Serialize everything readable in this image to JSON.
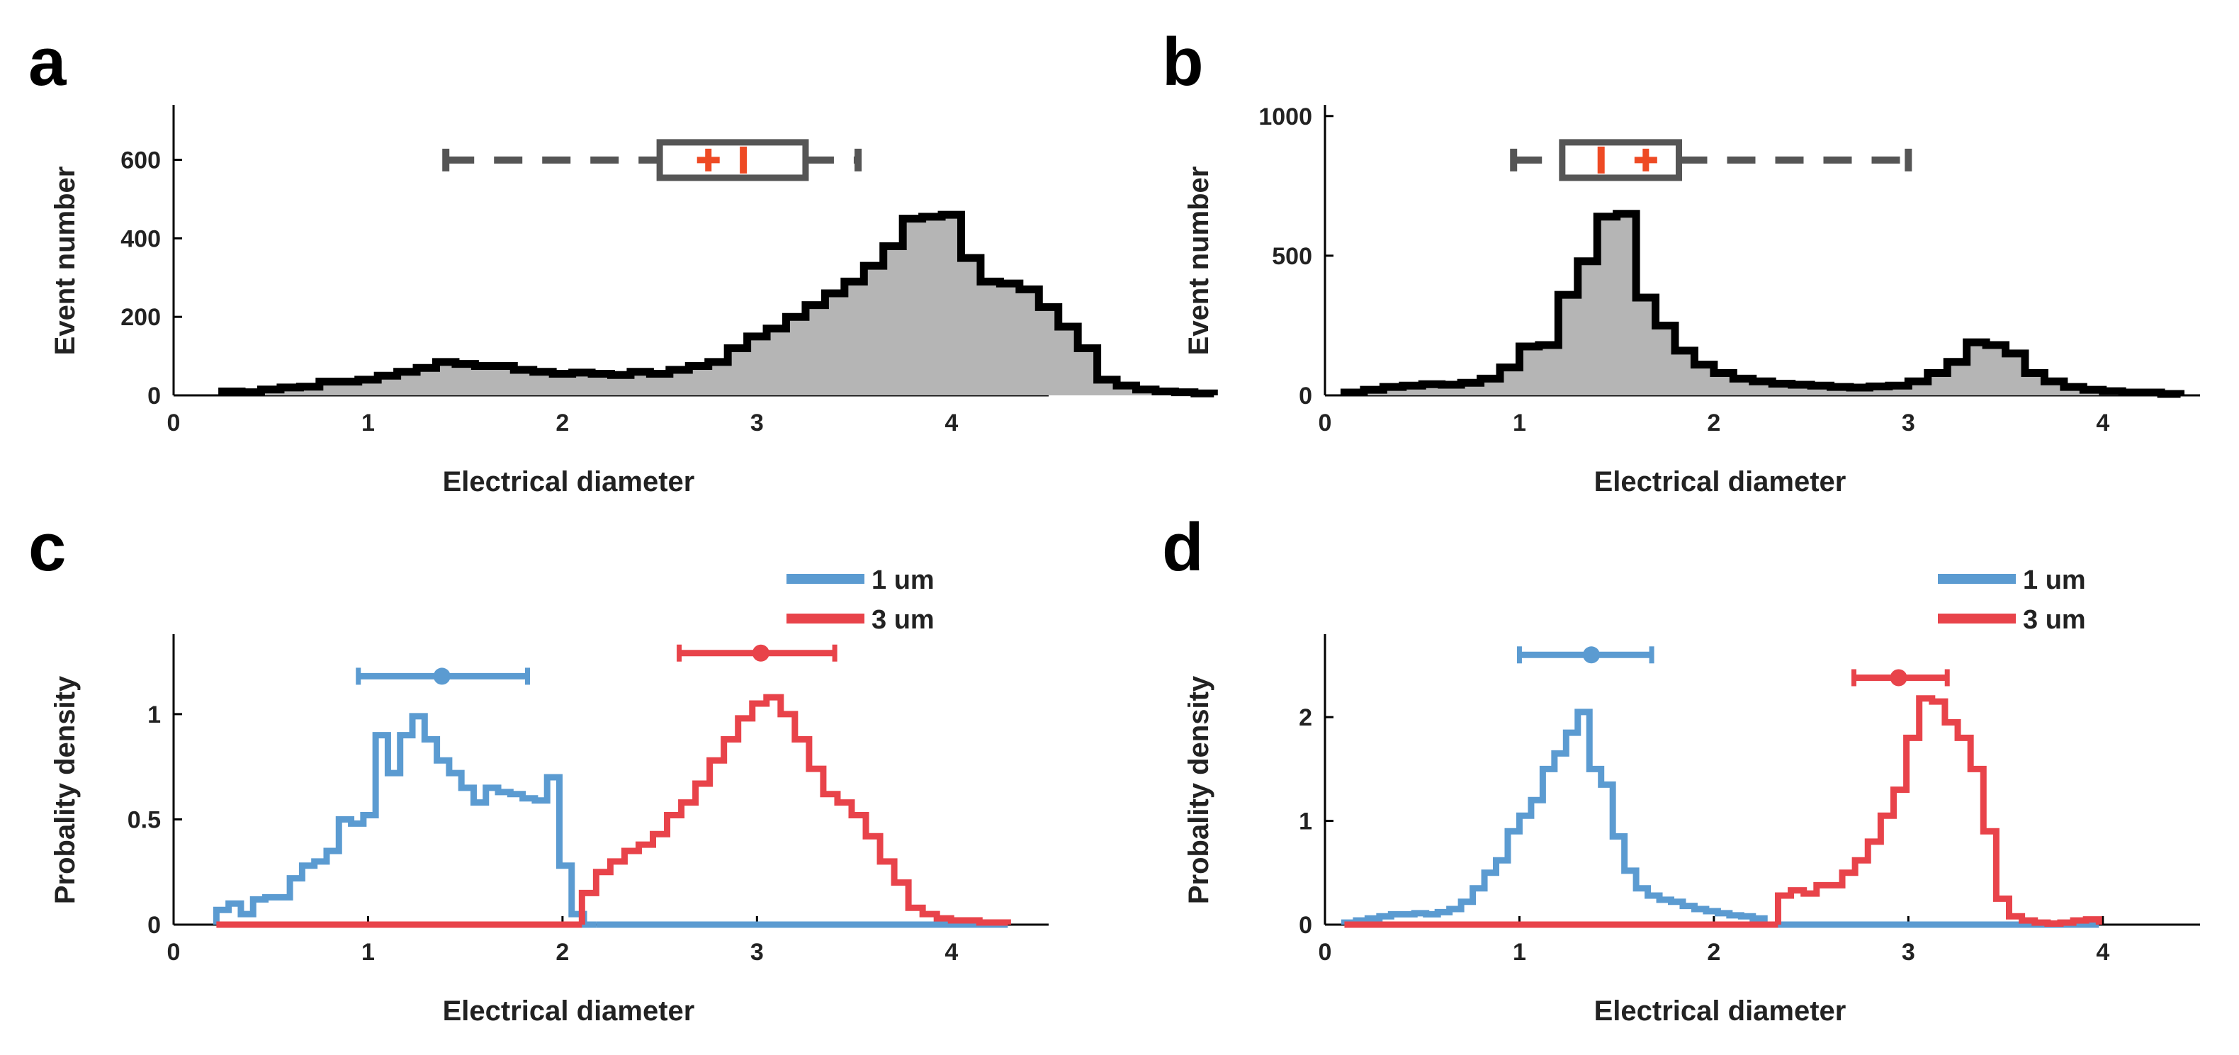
{
  "figure": {
    "panels": [
      {
        "letter": "a",
        "xlabel": "Electrical diameter",
        "ylabel": "Event number",
        "xticks": [
          0,
          1,
          2,
          3,
          4
        ],
        "yticks": [
          0,
          200,
          400,
          600
        ]
      },
      {
        "letter": "b",
        "xlabel": "Electrical diameter",
        "ylabel": "Event number",
        "xticks": [
          0,
          1,
          2,
          3,
          4
        ],
        "yticks": [
          0,
          500,
          1000
        ]
      },
      {
        "letter": "c",
        "xlabel": "Electrical diameter",
        "ylabel": "Probality density",
        "xticks": [
          0,
          1,
          2,
          3,
          4
        ],
        "yticks": [
          "0",
          "0.5",
          "1"
        ],
        "legend": [
          "1 um",
          "3 um"
        ]
      },
      {
        "letter": "d",
        "xlabel": "Electrical diameter",
        "ylabel": "Probality density",
        "xticks": [
          0,
          1,
          2,
          3,
          4
        ],
        "yticks": [
          0,
          1,
          2
        ],
        "legend": [
          "1 um",
          "3 um"
        ]
      }
    ]
  },
  "chart_data": [
    {
      "type": "histogram",
      "panel": "a",
      "xlabel": "Electrical diameter",
      "ylabel": "Event number",
      "xlim": [
        0,
        4.5
      ],
      "ylim": [
        0,
        740
      ],
      "bin_start": 0.25,
      "bin_width": 0.1,
      "values": [
        10,
        8,
        15,
        20,
        22,
        35,
        35,
        40,
        50,
        60,
        70,
        85,
        80,
        75,
        75,
        65,
        60,
        55,
        58,
        55,
        52,
        60,
        55,
        65,
        75,
        85,
        120,
        150,
        170,
        200,
        230,
        260,
        290,
        330,
        380,
        450,
        455,
        460,
        350,
        290,
        285,
        270,
        225,
        175,
        120,
        40,
        25,
        15,
        10,
        8,
        5
      ],
      "boxplot": {
        "whisker_low": 1.4,
        "q1": 2.5,
        "median": 2.93,
        "mean": 2.75,
        "q3": 3.25,
        "whisker_high": 3.52
      },
      "colors": {
        "fill": "#b5b5b5",
        "stroke": "#000000",
        "box": "#555555",
        "marker": "#ee4a24"
      }
    },
    {
      "type": "histogram",
      "panel": "b",
      "xlabel": "Electrical diameter",
      "ylabel": "Event number",
      "xlim": [
        0,
        4.5
      ],
      "ylim": [
        0,
        1040
      ],
      "bin_start": 0.1,
      "bin_width": 0.1,
      "values": [
        10,
        20,
        30,
        35,
        40,
        38,
        45,
        60,
        100,
        175,
        180,
        360,
        480,
        640,
        650,
        350,
        250,
        160,
        110,
        80,
        60,
        50,
        42,
        38,
        35,
        30,
        28,
        32,
        35,
        50,
        80,
        120,
        190,
        180,
        150,
        80,
        50,
        30,
        20,
        15,
        10,
        10,
        5
      ],
      "boxplot": {
        "whisker_low": 0.97,
        "q1": 1.22,
        "median": 1.42,
        "mean": 1.65,
        "q3": 1.82,
        "whisker_high": 3.0
      },
      "colors": {
        "fill": "#b5b5b5",
        "stroke": "#000000",
        "box": "#555555",
        "marker": "#ee4a24"
      }
    },
    {
      "type": "line",
      "panel": "c",
      "xlabel": "Electrical diameter",
      "ylabel": "Probality density",
      "xlim": [
        0,
        4.5
      ],
      "ylim": [
        0,
        1.38
      ],
      "series": [
        {
          "name": "1 um",
          "color": "#5b9bd1",
          "bin_start": 0.22,
          "bin_width": 0.063,
          "values": [
            0.07,
            0.1,
            0.05,
            0.12,
            0.13,
            0.13,
            0.22,
            0.28,
            0.3,
            0.35,
            0.5,
            0.48,
            0.52,
            0.9,
            0.72,
            0.9,
            0.99,
            0.88,
            0.78,
            0.72,
            0.65,
            0.58,
            0.65,
            0.63,
            0.62,
            0.6,
            0.59,
            0.7,
            0.28,
            0.05,
            0.0
          ],
          "errorbar": {
            "mean": 1.38,
            "low": 0.95,
            "high": 1.82,
            "y": 1.18
          }
        },
        {
          "name": "3 um",
          "color": "#e8434a",
          "bin_start": 2.1,
          "bin_width": 0.073,
          "values": [
            0.15,
            0.25,
            0.3,
            0.35,
            0.38,
            0.43,
            0.52,
            0.58,
            0.67,
            0.78,
            0.88,
            0.98,
            1.05,
            1.08,
            1.0,
            0.88,
            0.74,
            0.62,
            0.58,
            0.52,
            0.42,
            0.3,
            0.2,
            0.08,
            0.05,
            0.03,
            0.02,
            0.02,
            0.01,
            0.01
          ],
          "errorbar": {
            "mean": 3.02,
            "low": 2.6,
            "high": 3.4,
            "y": 1.29
          }
        }
      ],
      "legend": "top-right"
    },
    {
      "type": "line",
      "panel": "d",
      "xlabel": "Electrical diameter",
      "ylabel": "Probality density",
      "xlim": [
        0,
        4.5
      ],
      "ylim": [
        0,
        2.8
      ],
      "series": [
        {
          "name": "1 um",
          "color": "#5b9bd1",
          "bin_start": 0.1,
          "bin_width": 0.06,
          "values": [
            0.02,
            0.04,
            0.06,
            0.08,
            0.1,
            0.1,
            0.11,
            0.1,
            0.12,
            0.15,
            0.22,
            0.35,
            0.5,
            0.62,
            0.9,
            1.05,
            1.2,
            1.5,
            1.65,
            1.85,
            2.05,
            1.5,
            1.35,
            0.85,
            0.52,
            0.35,
            0.28,
            0.24,
            0.22,
            0.18,
            0.15,
            0.13,
            0.11,
            0.09,
            0.08,
            0.06
          ],
          "errorbar": {
            "mean": 1.37,
            "low": 1.0,
            "high": 1.68,
            "y": 2.6
          }
        },
        {
          "name": "3 um",
          "color": "#e8434a",
          "bin_start": 2.33,
          "bin_width": 0.066,
          "values": [
            0.28,
            0.33,
            0.3,
            0.38,
            0.38,
            0.5,
            0.62,
            0.8,
            1.05,
            1.3,
            1.8,
            2.18,
            2.15,
            1.95,
            1.8,
            1.5,
            0.9,
            0.25,
            0.08,
            0.04,
            0.02,
            0.01,
            0.02,
            0.04,
            0.05
          ],
          "errorbar": {
            "mean": 2.95,
            "low": 2.72,
            "high": 3.2,
            "y": 2.38
          }
        }
      ],
      "legend": "top-right"
    }
  ]
}
